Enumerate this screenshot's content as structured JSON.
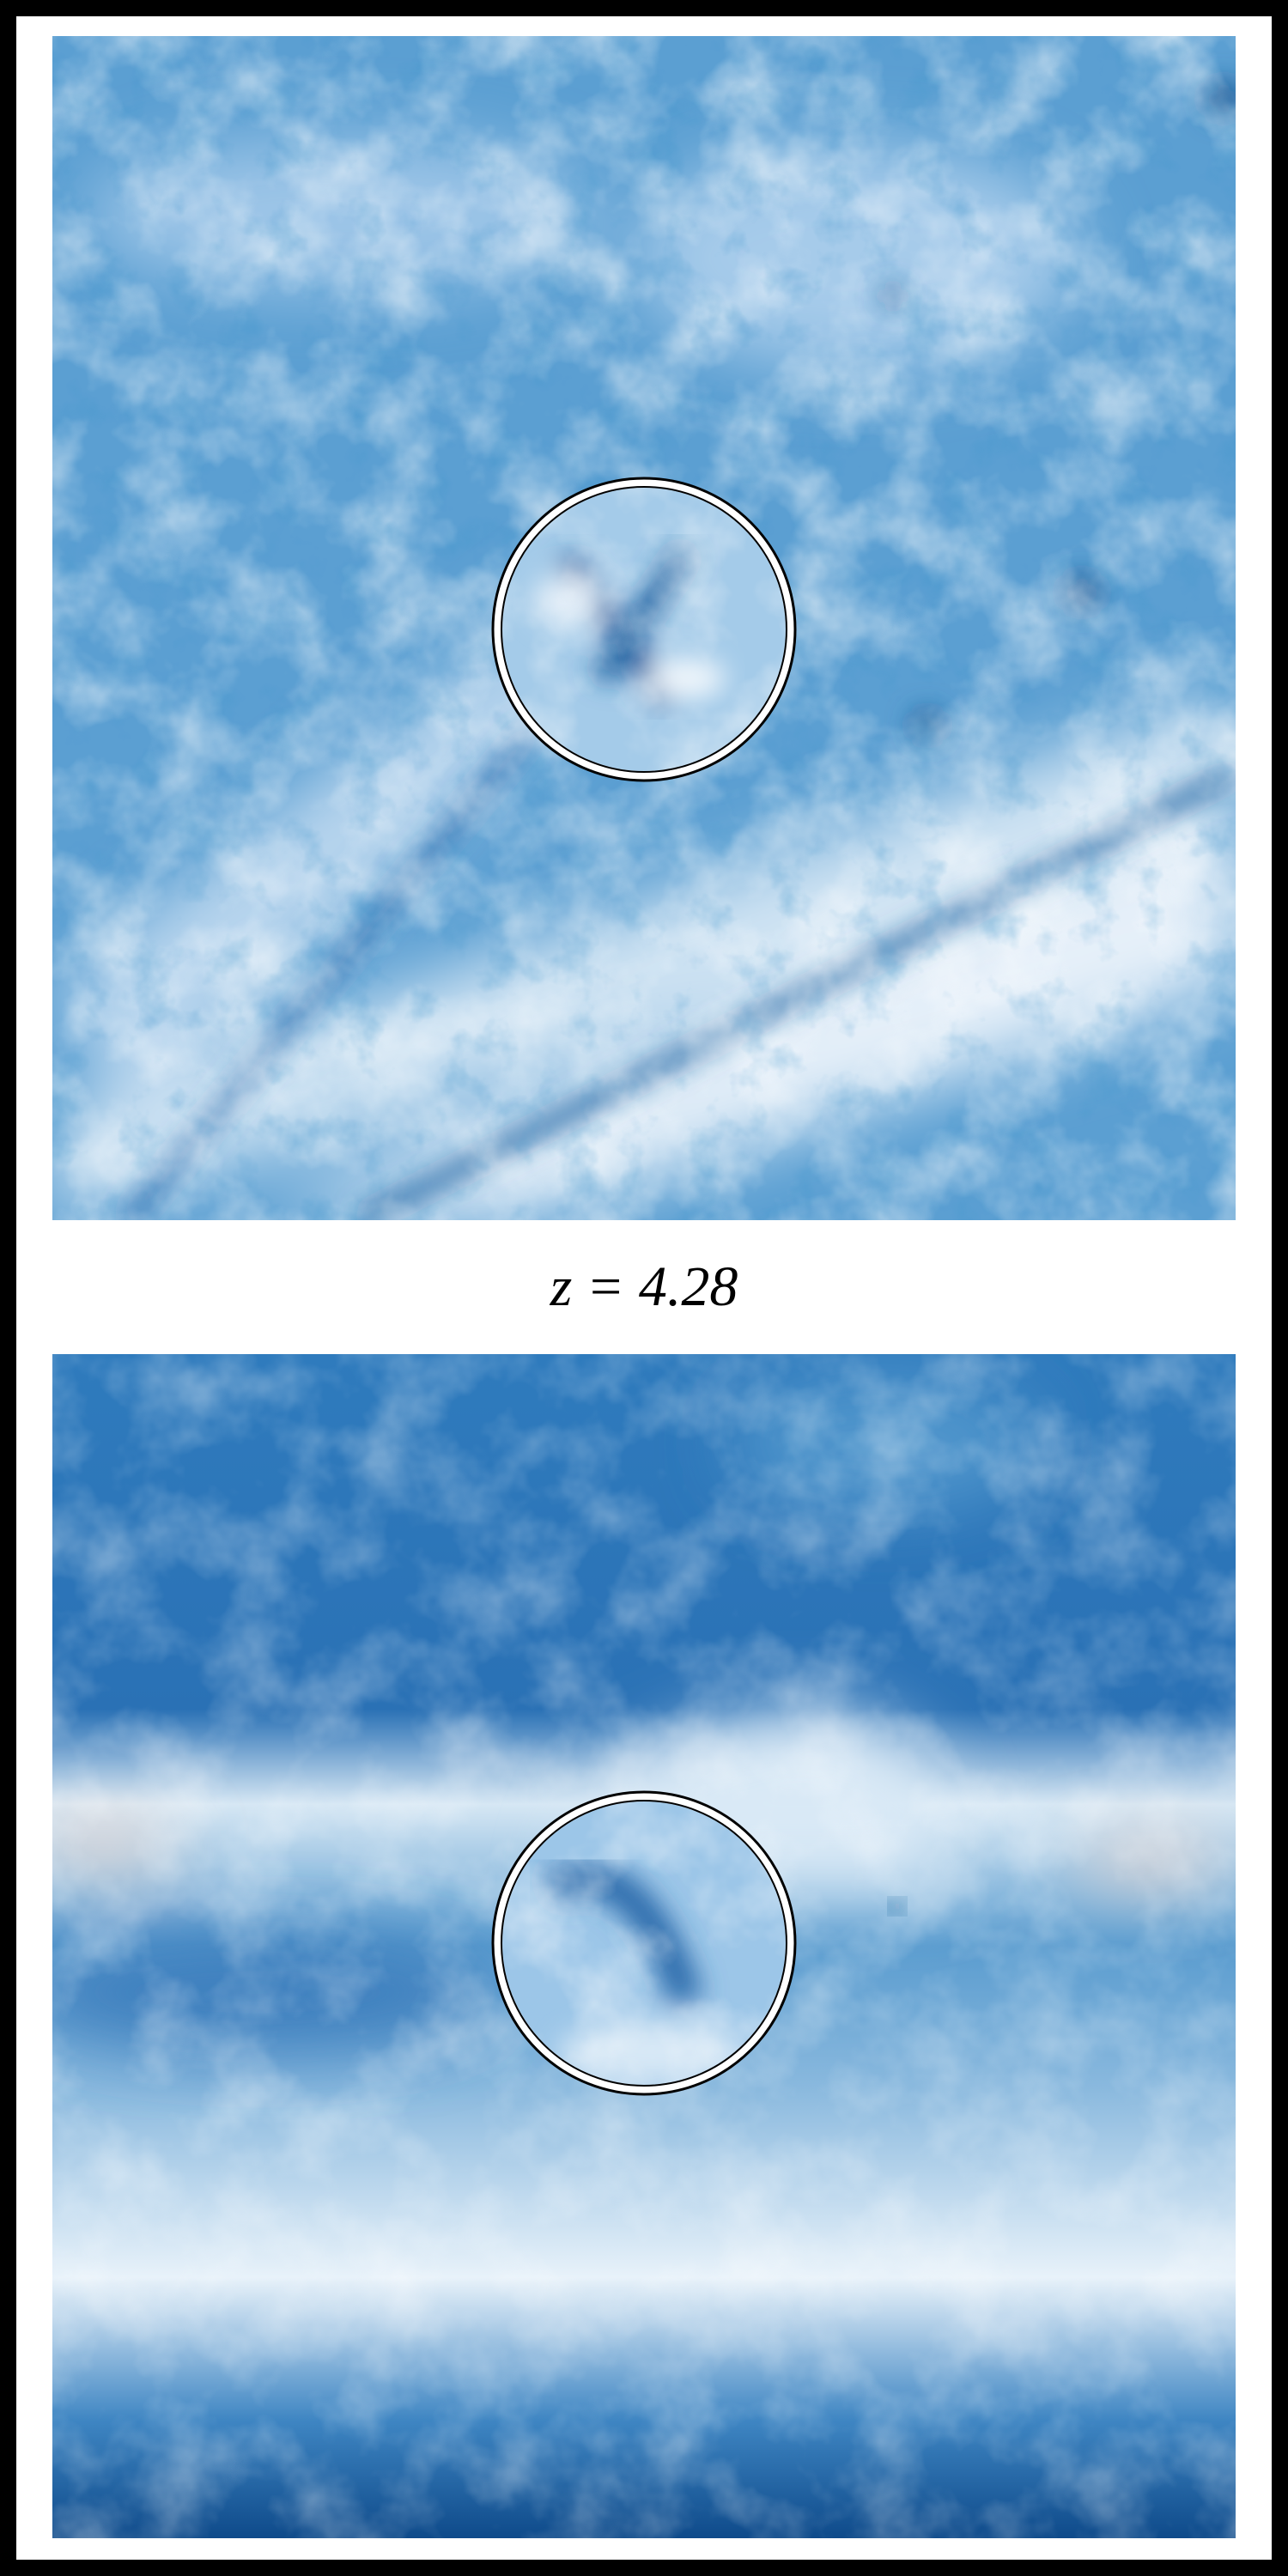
{
  "figure_label": "z = 4.28"
}
